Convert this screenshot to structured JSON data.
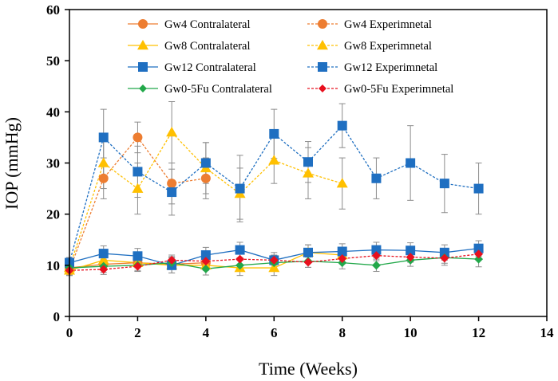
{
  "chart_data": {
    "type": "line",
    "xlabel": "Time (Weeks)",
    "ylabel": "IOP (mmHg)",
    "xlim": [
      0,
      14
    ],
    "ylim": [
      0,
      60
    ],
    "xticks": [
      0,
      2,
      4,
      6,
      8,
      10,
      12,
      14
    ],
    "yticks": [
      0,
      10,
      20,
      30,
      40,
      50,
      60
    ],
    "legend_position": "top",
    "series": [
      {
        "name": "Gw4 Contralateral",
        "color": "#ed7d31",
        "marker": "circle",
        "dashed": false,
        "x": [
          0,
          1,
          2,
          3,
          4
        ],
        "y": [
          9.5,
          10.2,
          10.5,
          10.2,
          10.5
        ],
        "err": [
          1.0,
          1.0,
          1.0,
          1.0,
          1.0
        ]
      },
      {
        "name": "Gw4 Experimnetal",
        "color": "#ed7d31",
        "marker": "circle",
        "dashed": true,
        "x": [
          0,
          1,
          2,
          3,
          4
        ],
        "y": [
          9.0,
          27.0,
          35.0,
          26.0,
          27.0
        ],
        "err": [
          1.0,
          4.0,
          3.0,
          4.0,
          4.0
        ]
      },
      {
        "name": "Gw8 Contralateral",
        "color": "#ffc000",
        "marker": "triangle",
        "dashed": false,
        "x": [
          0,
          1,
          2,
          3,
          4,
          5,
          6,
          7,
          8
        ],
        "y": [
          9.0,
          11.0,
          10.5,
          10.0,
          10.0,
          9.5,
          9.5,
          12.5,
          12.0
        ],
        "err": [
          1.0,
          1.5,
          1.5,
          1.5,
          1.0,
          1.5,
          1.5,
          1.5,
          1.5
        ]
      },
      {
        "name": "Gw8 Experimnetal",
        "color": "#ffc000",
        "marker": "triangle",
        "dashed": true,
        "x": [
          0,
          1,
          2,
          3,
          4,
          5,
          6,
          7,
          8
        ],
        "y": [
          9.5,
          30.0,
          25.0,
          36.0,
          29.0,
          24.0,
          30.5,
          28.0,
          26.0
        ],
        "err": [
          1.0,
          5.0,
          5.0,
          6.0,
          5.0,
          5.0,
          4.5,
          5.0,
          5.0
        ]
      },
      {
        "name": "Gw12 Contralateral",
        "color": "#1f6fc1",
        "marker": "square",
        "dashed": false,
        "x": [
          0,
          1,
          2,
          3,
          4,
          5,
          6,
          7,
          8,
          9,
          10,
          11,
          12
        ],
        "y": [
          10.5,
          12.3,
          11.8,
          10.0,
          12.0,
          13.0,
          11.0,
          12.5,
          12.7,
          13.0,
          12.9,
          12.5,
          13.3
        ],
        "err": [
          1.0,
          1.5,
          1.5,
          1.5,
          1.5,
          1.5,
          1.5,
          1.5,
          1.5,
          1.5,
          1.5,
          1.5,
          1.5
        ]
      },
      {
        "name": "Gw12 Experimnetal",
        "color": "#1f6fc1",
        "marker": "square",
        "dashed": true,
        "x": [
          0,
          1,
          2,
          3,
          4,
          5,
          6,
          7,
          8,
          9,
          10,
          11,
          12
        ],
        "y": [
          10.5,
          35.0,
          28.3,
          24.3,
          30.0,
          25.0,
          35.7,
          30.2,
          37.3,
          27.0,
          30.0,
          26.0,
          25.0
        ],
        "err": [
          1.0,
          5.5,
          5.0,
          4.5,
          4.0,
          6.5,
          4.8,
          4.0,
          4.3,
          4.0,
          7.3,
          5.7,
          5.0
        ]
      },
      {
        "name": "Gw0-5Fu Contralateral",
        "color": "#22a84a",
        "marker": "diamond",
        "dashed": false,
        "x": [
          0,
          1,
          2,
          3,
          4,
          5,
          6,
          7,
          8,
          9,
          10,
          11,
          12
        ],
        "y": [
          9.5,
          9.8,
          10.0,
          10.5,
          9.3,
          10.0,
          10.5,
          10.8,
          10.5,
          10.0,
          11.0,
          11.5,
          11.2
        ],
        "err": [
          1.0,
          1.2,
          1.2,
          1.2,
          1.2,
          1.2,
          1.2,
          1.2,
          1.2,
          1.2,
          1.2,
          1.5,
          1.5
        ]
      },
      {
        "name": "Gw0-5Fu Experimnetal",
        "color": "#e8101e",
        "marker": "diamond",
        "dashed": true,
        "x": [
          0,
          1,
          2,
          3,
          4,
          5,
          6,
          7,
          8,
          9,
          10,
          11,
          12
        ],
        "y": [
          9.0,
          9.2,
          9.8,
          11.0,
          10.8,
          11.2,
          11.0,
          10.6,
          11.3,
          11.9,
          11.6,
          11.4,
          12.2
        ],
        "err": [
          0.8,
          1.0,
          1.0,
          1.0,
          1.0,
          1.0,
          1.0,
          1.0,
          1.0,
          1.0,
          1.0,
          1.0,
          1.0
        ]
      }
    ]
  }
}
